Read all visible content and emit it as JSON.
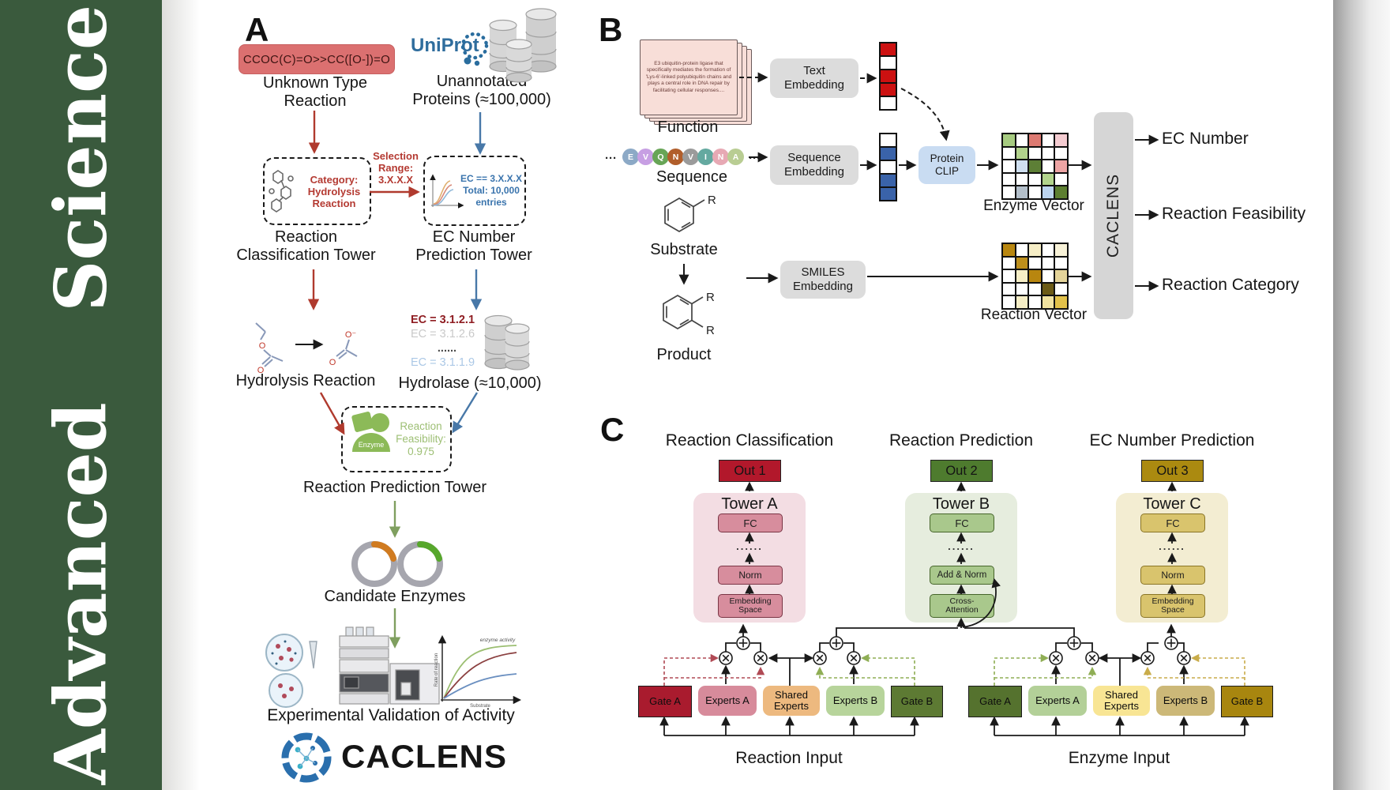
{
  "journal": {
    "name": "Advanced  Science"
  },
  "panel_a": {
    "label": "A",
    "smiles_box": "CCOC(C)=O>>CC([O-])=O",
    "unknown_type_label": "Unknown Type\nReaction",
    "uniprot_logo": "UniProt",
    "unannotated_label": "Unannotated\nProteins (≈100,000)",
    "classification_box": "Category:\nHydrolysis\nReaction",
    "selection_label": "Selection\nRange:\n3.X.X.X",
    "ec_box": "EC == 3.X.X.X\nTotal: 10,000\nentries",
    "classification_tower_label": "Reaction\nClassification Tower",
    "ec_tower_label": "EC Number\nPrediction Tower",
    "hydrolysis_label": "Hydrolysis Reaction",
    "ec_list": [
      {
        "text": "EC = 3.1.2.1",
        "color": "#8f1d22",
        "bold": true
      },
      {
        "text": "EC = 3.1.2.6",
        "color": "#c9c9c9",
        "bold": false
      },
      {
        "text": "......",
        "color": "#4a4a4a",
        "bold": true
      },
      {
        "text": "EC = 3.1.1.9",
        "color": "#abc8e6",
        "bold": false
      }
    ],
    "hydrolase_label": "Hydrolase (≈10,000)",
    "enzyme_badge": "Enzyme",
    "feasibility_text": "Reaction\nFeasibility:\n0.975",
    "prediction_tower_label": "Reaction Prediction Tower",
    "candidate_label": "Candidate Enzymes",
    "activity_chart": {
      "annotation": "enzyme activity",
      "ylabel": "Rate of reaction",
      "xlabel": "Substrate"
    },
    "validation_label": "Experimental Validation of Activity",
    "logo_text": "CACLENS"
  },
  "panel_b": {
    "label": "B",
    "function_card_text": "E3 ubiquitin-protein ligase that specifically mediates the formation of 'Lys-6'-linked polyubiquitin chains and plays a central role in DNA repair by facilitating cellular responses....",
    "function_label": "Function",
    "ellipsis": "···",
    "sequence_residues": [
      {
        "letter": "E",
        "color": "#8ca9c6"
      },
      {
        "letter": "V",
        "color": "#c79fe3"
      },
      {
        "letter": "Q",
        "color": "#67a556"
      },
      {
        "letter": "N",
        "color": "#b15e2b"
      },
      {
        "letter": "V",
        "color": "#9b9b9b"
      },
      {
        "letter": "I",
        "color": "#64a9a0"
      },
      {
        "letter": "N",
        "color": "#e7a9b4"
      },
      {
        "letter": "A",
        "color": "#b9cd93"
      }
    ],
    "sequence_label": "Sequence",
    "substrate_label": "Substrate",
    "product_label": "Product",
    "r_label": "R",
    "text_embedding": "Text\nEmbedding",
    "sequence_embedding": "Sequence\nEmbedding",
    "smiles_embedding": "SMILES\nEmbedding",
    "protein_clip": "Protein\nCLIP",
    "text_vector": [
      "#cc1111",
      "#ffffff",
      "#cc1111",
      "#cc1111",
      "#ffffff"
    ],
    "seq_vector": [
      "#ffffff",
      "#3a63a9",
      "#ffffff",
      "#3a63a9",
      "#3a63a9"
    ],
    "enzyme_matrix": [
      "#a6cb80",
      "#ffffff",
      "#dd7a72",
      "#ffffff",
      "#f4ccd1",
      "#ffffff",
      "#b2d28c",
      "#ffffff",
      "#ffffff",
      "#ffffff",
      "#ffffff",
      "#cfdff0",
      "#5d7f36",
      "#ffffff",
      "#eda4a4",
      "#ffffff",
      "#ffffff",
      "#ffffff",
      "#b2d48c",
      "#ffffff",
      "#ffffff",
      "#b3bfca",
      "#ffffff",
      "#bcd4ee",
      "#5d7f31"
    ],
    "enzyme_vector_label": "Enzyme Vector",
    "reaction_matrix": [
      "#b8860f",
      "#ffffff",
      "#f6eec6",
      "#ffffff",
      "#f8f2d8",
      "#ffffff",
      "#bd8f1c",
      "#ffffff",
      "#ffffff",
      "#ffffff",
      "#ffffff",
      "#f6eec6",
      "#b8860f",
      "#ffffff",
      "#e4d49a",
      "#ffffff",
      "#ffffff",
      "#ffffff",
      "#6b5a16",
      "#ffffff",
      "#ffffff",
      "#f6eec6",
      "#ffffff",
      "#f0e2a0",
      "#e2c14a"
    ],
    "reaction_vector_label": "Reaction Vector",
    "caclens_box": "CACLENS",
    "outputs": [
      "EC Number",
      "Reaction Feasibility",
      "Reaction Category"
    ]
  },
  "panel_c": {
    "label": "C",
    "columns": [
      {
        "title": "Reaction Classification",
        "out": "Out 1",
        "tower": "Tower A",
        "layers": [
          "FC",
          "......",
          "Norm",
          "Embedding\nSpace"
        ]
      },
      {
        "title": "Reaction Prediction",
        "out": "Out 2",
        "tower": "Tower B",
        "layers": [
          "FC",
          "......",
          "Add & Norm",
          "Cross-\nAttention"
        ]
      },
      {
        "title": "EC Number Prediction",
        "out": "Out 3",
        "tower": "Tower C",
        "layers": [
          "FC",
          "......",
          "Norm",
          "Embedding\nSpace"
        ]
      }
    ],
    "moe_groups": [
      {
        "input_label": "Reaction Input",
        "boxes": [
          {
            "label": "Gate A",
            "bg": "#a91b2e",
            "shape": "rect"
          },
          {
            "label": "Experts A",
            "bg": "#d78b9b",
            "shape": "round"
          },
          {
            "label": "Shared\nExperts",
            "bg": "#edb97f",
            "shape": "shared"
          },
          {
            "label": "Experts B",
            "bg": "#b7d49b",
            "shape": "round"
          },
          {
            "label": "Gate B",
            "bg": "#5d7a33",
            "shape": "rect"
          }
        ]
      },
      {
        "input_label": "Enzyme Input",
        "boxes": [
          {
            "label": "Gate A",
            "bg": "#55722e",
            "shape": "rect"
          },
          {
            "label": "Experts A",
            "bg": "#b3d098",
            "shape": "round"
          },
          {
            "label": "Shared\nExperts",
            "bg": "#f8e594",
            "shape": "shared"
          },
          {
            "label": "Experts B",
            "bg": "#ccb878",
            "shape": "round"
          },
          {
            "label": "Gate B",
            "bg": "#a8860f",
            "shape": "rect"
          }
        ]
      }
    ]
  },
  "accent_colors": {
    "red_arrow": "#b03a2e",
    "blue_arrow": "#4878a8",
    "green_arrow": "#7f9f5f",
    "sidebar_green": "#3a5a3d"
  }
}
